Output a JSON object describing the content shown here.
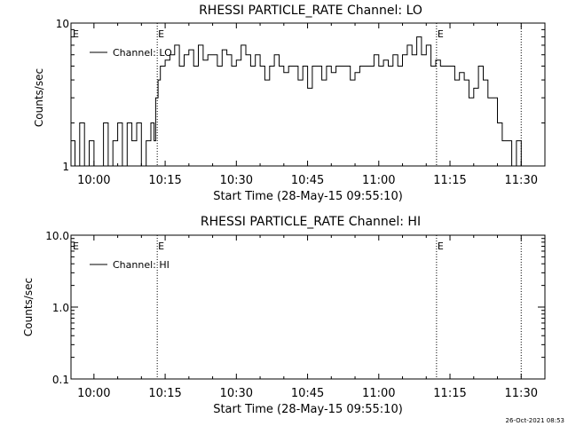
{
  "footer": {
    "timestamp": "26-Oct-2021 08:53"
  },
  "chart_data": [
    {
      "type": "line",
      "title": "RHESSI PARTICLE_RATE Channel: LO",
      "xlabel": "Start Time (28-May-15 09:55:10)",
      "ylabel": "Counts/sec",
      "yscale": "log",
      "ylim": [
        1,
        10
      ],
      "xlim": [
        "09:55:10",
        "11:35"
      ],
      "x_tick_labels": [
        "10:00",
        "10:15",
        "10:30",
        "10:45",
        "11:00",
        "11:15",
        "11:30"
      ],
      "y_tick_labels": [
        "1",
        "10"
      ],
      "legend": {
        "position": "top-left",
        "entries": [
          "Channel: LO"
        ]
      },
      "markers": [
        {
          "time": "10:13:20",
          "label": "E"
        },
        {
          "time": "11:12:10",
          "label": "E"
        },
        {
          "time": "11:30:00",
          "label": ""
        }
      ],
      "series": [
        {
          "name": "Channel: LO",
          "x": [
            "09:55:10",
            "09:56",
            "09:57",
            "09:58",
            "09:59",
            "10:00",
            "10:01",
            "10:02",
            "10:03",
            "10:04",
            "10:05",
            "10:06",
            "10:07",
            "10:08",
            "10:09",
            "10:10",
            "10:11",
            "10:12",
            "10:12:40",
            "10:13",
            "10:13:30",
            "10:14",
            "10:15",
            "10:16",
            "10:17",
            "10:18",
            "10:19",
            "10:20",
            "10:21",
            "10:22",
            "10:23",
            "10:24",
            "10:25",
            "10:26",
            "10:27",
            "10:28",
            "10:29",
            "10:30",
            "10:31",
            "10:32",
            "10:33",
            "10:34",
            "10:35",
            "10:36",
            "10:37",
            "10:38",
            "10:39",
            "10:40",
            "10:41",
            "10:42",
            "10:43",
            "10:44",
            "10:45",
            "10:46",
            "10:47",
            "10:48",
            "10:49",
            "10:50",
            "10:51",
            "10:52",
            "10:53",
            "10:54",
            "10:55",
            "10:56",
            "10:57",
            "10:58",
            "10:59",
            "11:00",
            "11:01",
            "11:02",
            "11:03",
            "11:04",
            "11:05",
            "11:06",
            "11:07",
            "11:08",
            "11:09",
            "11:10",
            "11:11",
            "11:12",
            "11:13",
            "11:14",
            "11:15",
            "11:16",
            "11:17",
            "11:18",
            "11:19",
            "11:20",
            "11:21",
            "11:22",
            "11:23",
            "11:24",
            "11:25",
            "11:26",
            "11:27",
            "11:28",
            "11:29",
            "11:30"
          ],
          "y": [
            1.5,
            1,
            2,
            1,
            1.5,
            1,
            1,
            2,
            1,
            1.5,
            2,
            1,
            2,
            1.5,
            2,
            1,
            1.5,
            2,
            1.5,
            3,
            4,
            5,
            5.5,
            6,
            7,
            5,
            6,
            6.5,
            5,
            7,
            5.5,
            6,
            6,
            5,
            6.5,
            6,
            5,
            5.5,
            7,
            6,
            5,
            6,
            5,
            4,
            5,
            6,
            5,
            4.5,
            5,
            5,
            4,
            5,
            3.5,
            5,
            5,
            4,
            5,
            4.5,
            5,
            5,
            5,
            4,
            4.5,
            5,
            5,
            5,
            6,
            5,
            5.5,
            5,
            6,
            5,
            6,
            7,
            6,
            8,
            6,
            7,
            5,
            5.5,
            5,
            5,
            5,
            4,
            4.5,
            4,
            3,
            3.5,
            5,
            4,
            3,
            3,
            2,
            1.5,
            1.5,
            1,
            1.5,
            1
          ]
        }
      ]
    },
    {
      "type": "line",
      "title": "RHESSI PARTICLE_RATE Channel: HI",
      "xlabel": "Start Time (28-May-15 09:55:10)",
      "ylabel": "Counts/sec",
      "yscale": "log",
      "ylim": [
        0.1,
        10
      ],
      "xlim": [
        "09:55:10",
        "11:35"
      ],
      "x_tick_labels": [
        "10:00",
        "10:15",
        "10:30",
        "10:45",
        "11:00",
        "11:15",
        "11:30"
      ],
      "y_tick_labels": [
        "0.1",
        "1.0",
        "10.0"
      ],
      "legend": {
        "position": "top-left",
        "entries": [
          "Channel: HI"
        ]
      },
      "markers": [
        {
          "time": "10:13:20",
          "label": "E"
        },
        {
          "time": "11:12:10",
          "label": "E"
        },
        {
          "time": "11:30:00",
          "label": ""
        }
      ],
      "series": [
        {
          "name": "Channel: HI",
          "x": [],
          "y": []
        }
      ]
    }
  ]
}
